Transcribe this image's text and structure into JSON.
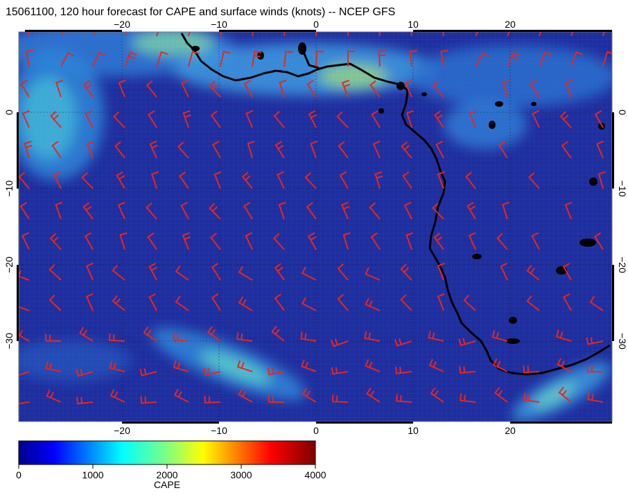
{
  "title": "15061100, 120 hour forecast for CAPE and surface winds (knots) -- NCEP GFS",
  "map": {
    "lon_range": [
      -30,
      31
    ],
    "lat_range": [
      -40,
      11
    ],
    "lon_ticks": [
      -20,
      -10,
      0,
      10,
      20
    ],
    "lon_tick_labels": [
      "−20",
      "−10",
      "0",
      "10",
      "20"
    ],
    "lat_ticks": [
      0,
      -10,
      -20,
      -30
    ],
    "lat_tick_labels": [
      "0",
      "−10",
      "−20",
      "−30"
    ],
    "field": "CAPE",
    "vectors": "surface winds (knots)",
    "background_color": "#1f2e9e",
    "wind_barb_color": "#e8261f",
    "coastline_color": "#000000",
    "grid_style": "dotted"
  },
  "colorbar": {
    "label": "CAPE",
    "min": 0,
    "max": 4000,
    "ticks": [
      0,
      1000,
      2000,
      3000,
      4000
    ],
    "tick_labels": [
      "0",
      "1000",
      "2000",
      "3000",
      "4000"
    ],
    "colormap": "jet"
  }
}
